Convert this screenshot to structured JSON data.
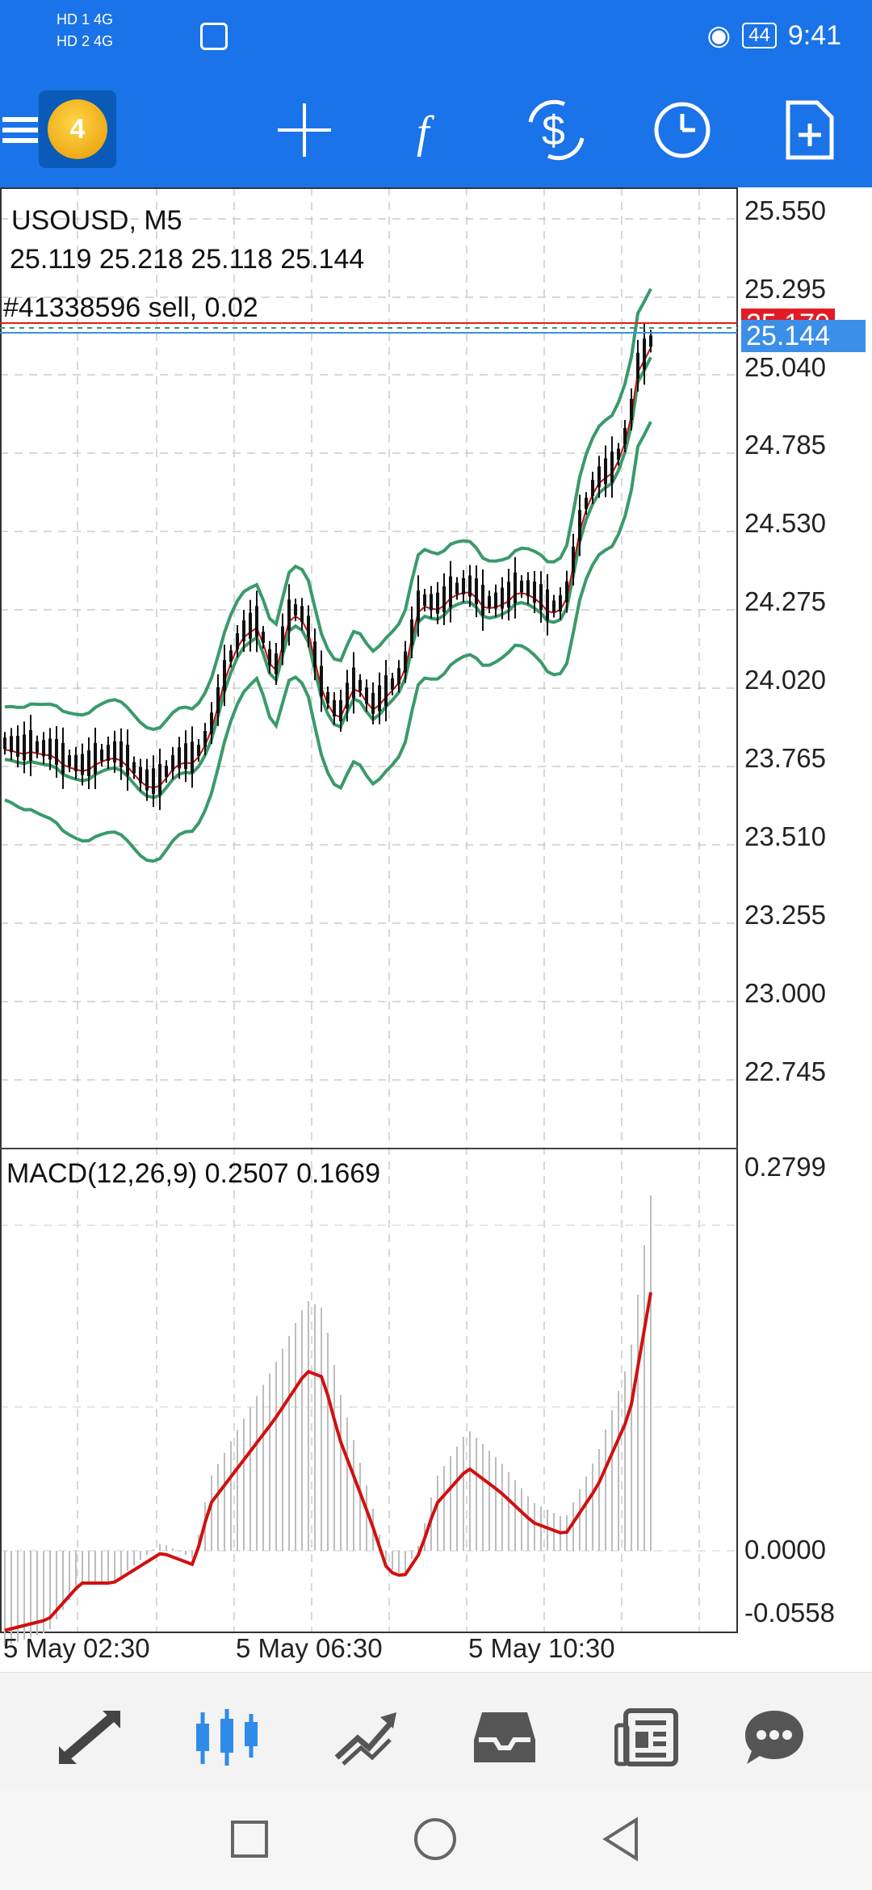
{
  "status_bar": {
    "network_top": "HD 1  4G",
    "network_bottom": "HD 2  4G",
    "battery": "44",
    "time": "9:41"
  },
  "toolbar": {
    "app_logo_badge": "4",
    "icons": [
      "menu-icon",
      "crosshair-icon",
      "indicators-icon",
      "trade-icon",
      "period-icon",
      "new-order-icon"
    ]
  },
  "chart": {
    "symbol_label": "USOUSD, M5",
    "ohlc_label": "25.119 25.218 25.118 25.144",
    "order_label": "#41338596 sell, 0.02",
    "price_ticks": [
      "25.550",
      "25.295",
      "25.040",
      "24.785",
      "24.530",
      "24.275",
      "24.020",
      "23.765",
      "23.510",
      "23.255",
      "23.000",
      "22.745"
    ],
    "current_price": "25.144",
    "order_price_partial": "25.179",
    "colors": {
      "bid": "#3b8fe8",
      "order": "#e31b23",
      "bands": "#3a9a6a",
      "ma": "#c41010"
    }
  },
  "macd": {
    "label": "MACD(12,26,9) 0.2507 0.1669",
    "ticks": [
      "0.2799",
      "0.0000",
      "-0.0558"
    ]
  },
  "time_axis": [
    "5 May 02:30",
    "5 May 06:30",
    "5 May 10:30"
  ],
  "bottom_nav": [
    "quotes-icon",
    "chart-icon",
    "trade-icon",
    "history-icon",
    "news-icon",
    "chat-icon"
  ],
  "system_nav": [
    "recents-icon",
    "home-icon",
    "back-icon"
  ]
}
